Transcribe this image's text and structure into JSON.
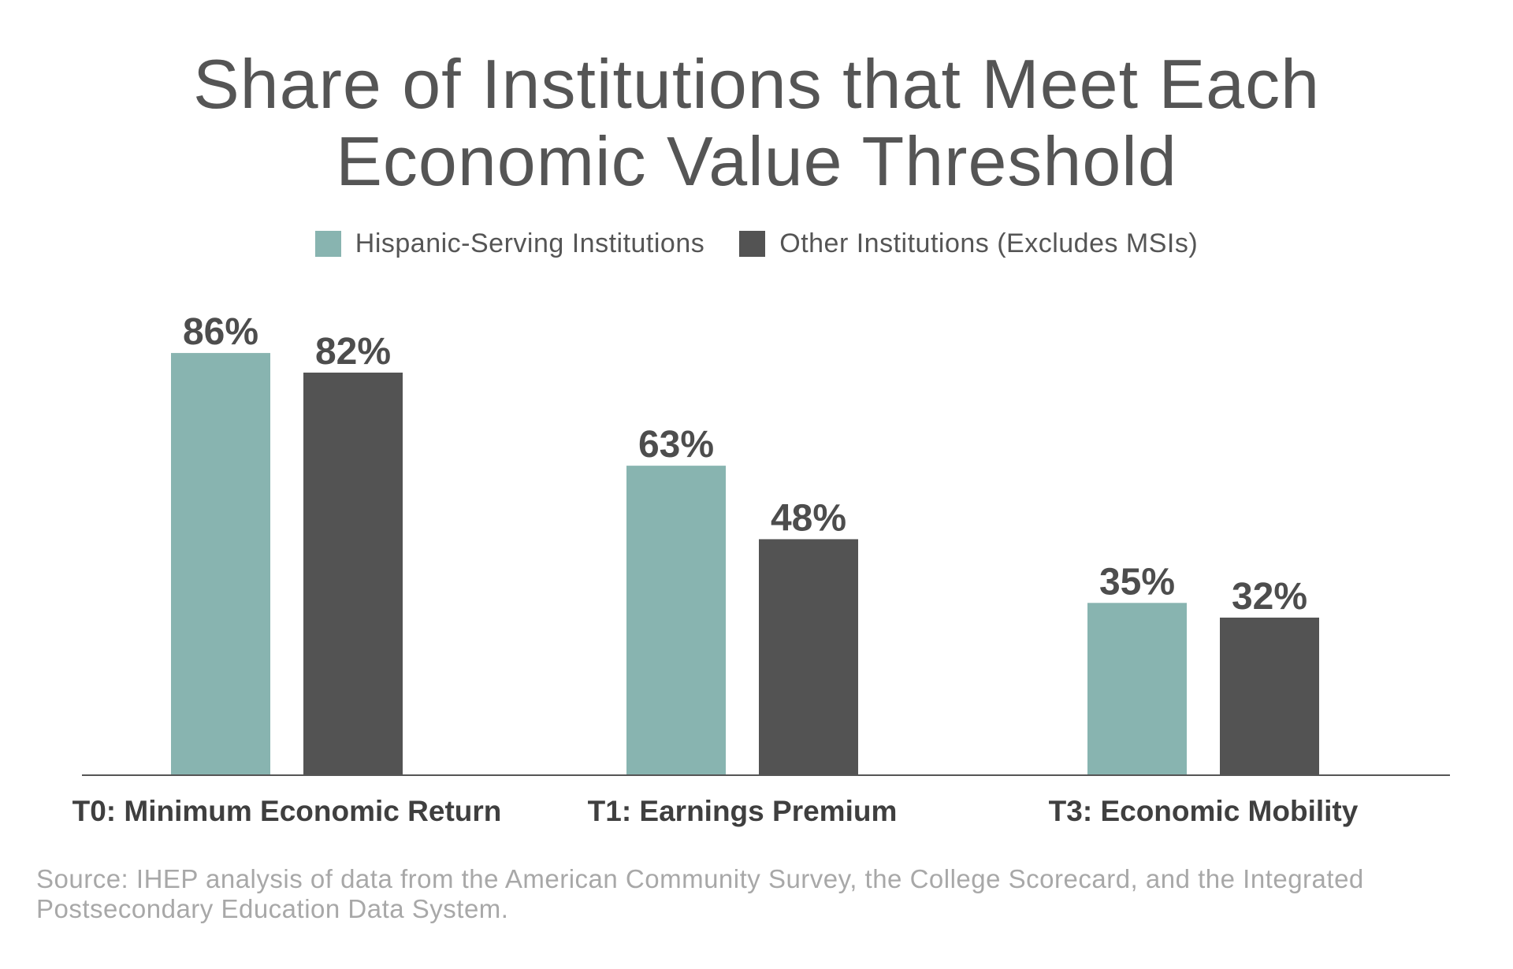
{
  "title_lines": [
    "Share of Institutions that Meet Each",
    "Economic Value Threshold"
  ],
  "legend": [
    {
      "label": "Hispanic-Serving Institutions",
      "color": "#88b4b0"
    },
    {
      "label": "Other Institutions (Excludes MSIs)",
      "color": "#535353"
    }
  ],
  "source_note": "Source: IHEP analysis of data from the American Community Survey, the College Scorecard, and the Integrated Postsecondary Education Data System.",
  "chart_data": {
    "type": "bar",
    "title": "Share of Institutions that Meet Each Economic Value Threshold",
    "categories": [
      "T0: Minimum Economic Return",
      "T1: Earnings Premium",
      "T3: Economic Mobility"
    ],
    "series": [
      {
        "name": "Hispanic-Serving Institutions",
        "color": "#88b4b0",
        "values": [
          86,
          63,
          35
        ]
      },
      {
        "name": "Other Institutions (Excludes MSIs)",
        "color": "#535353",
        "values": [
          82,
          48,
          32
        ]
      }
    ],
    "data_labels": [
      [
        "86%",
        "63%",
        "35%"
      ],
      [
        "82%",
        "48%",
        "32%"
      ]
    ],
    "xlabel": "",
    "ylabel": "",
    "ylim": [
      0,
      100
    ],
    "grid": false,
    "legend_position": "top-center"
  }
}
